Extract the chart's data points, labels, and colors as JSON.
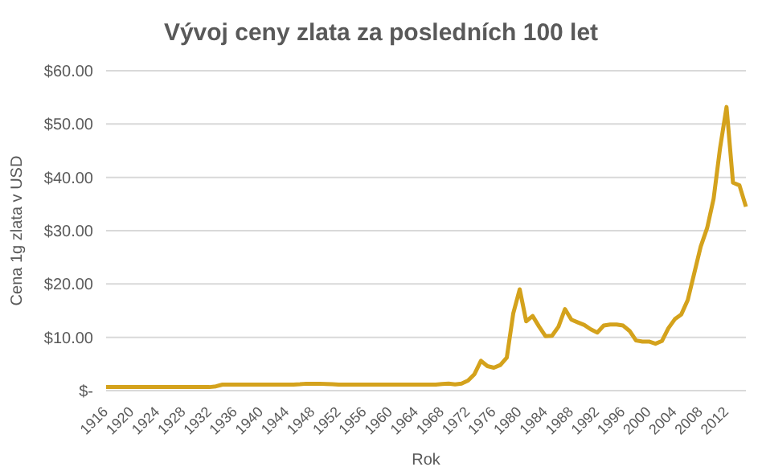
{
  "chart_data": {
    "type": "line",
    "title": "Vývoj ceny zlata za posledních 100 let",
    "xlabel": "Rok",
    "ylabel": "Cena 1g zlata v USD",
    "categories": [
      "1916",
      null,
      null,
      null,
      "1920",
      null,
      null,
      null,
      "1924",
      null,
      null,
      null,
      "1928",
      null,
      null,
      null,
      "1932",
      null,
      null,
      null,
      "1936",
      null,
      null,
      null,
      "1940",
      null,
      null,
      null,
      "1944",
      null,
      null,
      null,
      "1948",
      null,
      null,
      null,
      "1952",
      null,
      null,
      null,
      "1956",
      null,
      null,
      null,
      "1960",
      null,
      null,
      null,
      "1964",
      null,
      null,
      null,
      "1968",
      null,
      null,
      null,
      "1972",
      null,
      null,
      null,
      "1976",
      null,
      null,
      null,
      "1980",
      null,
      null,
      null,
      "1984",
      null,
      null,
      null,
      "1988",
      null,
      null,
      null,
      "1992",
      null,
      null,
      null,
      "1996",
      null,
      null,
      null,
      "2000",
      null,
      null,
      null,
      "2004",
      null,
      null,
      null,
      "2008",
      null,
      null,
      null,
      "2012",
      null,
      null,
      null
    ],
    "series": [
      {
        "color": "#d4a21c",
        "values": [
          0.66,
          0.66,
          0.66,
          0.66,
          0.66,
          0.66,
          0.66,
          0.66,
          0.66,
          0.66,
          0.66,
          0.66,
          0.66,
          0.66,
          0.66,
          0.66,
          0.66,
          0.8,
          1.13,
          1.13,
          1.13,
          1.13,
          1.13,
          1.13,
          1.13,
          1.13,
          1.13,
          1.13,
          1.13,
          1.13,
          1.2,
          1.3,
          1.3,
          1.3,
          1.25,
          1.2,
          1.13,
          1.13,
          1.13,
          1.13,
          1.13,
          1.13,
          1.13,
          1.13,
          1.13,
          1.13,
          1.13,
          1.13,
          1.13,
          1.13,
          1.13,
          1.13,
          1.25,
          1.32,
          1.16,
          1.32,
          1.87,
          3.1,
          5.6,
          4.6,
          4.3,
          4.8,
          6.2,
          14.5,
          19,
          13,
          14,
          12,
          10.2,
          10.3,
          12,
          15.3,
          13.3,
          12.8,
          12.3,
          11.5,
          10.9,
          12.2,
          12.4,
          12.4,
          12.2,
          11.2,
          9.4,
          9.2,
          9.2,
          8.8,
          9.3,
          11.7,
          13.4,
          14.3,
          17,
          22,
          27,
          30.5,
          36,
          45.5,
          53.2,
          39,
          38.5,
          34.5
        ]
      }
    ],
    "ylim": [
      0,
      60
    ],
    "yticks": [
      {
        "value": 0,
        "label": "$-"
      },
      {
        "value": 10,
        "label": "$10.00"
      },
      {
        "value": 20,
        "label": "$20.00"
      },
      {
        "value": 30,
        "label": "$30.00"
      },
      {
        "value": 40,
        "label": "$40.00"
      },
      {
        "value": 50,
        "label": "$50.00"
      },
      {
        "value": 60,
        "label": "$60.00"
      }
    ],
    "grid": "y",
    "legend": false,
    "marker": "none",
    "line_style": "solid"
  }
}
